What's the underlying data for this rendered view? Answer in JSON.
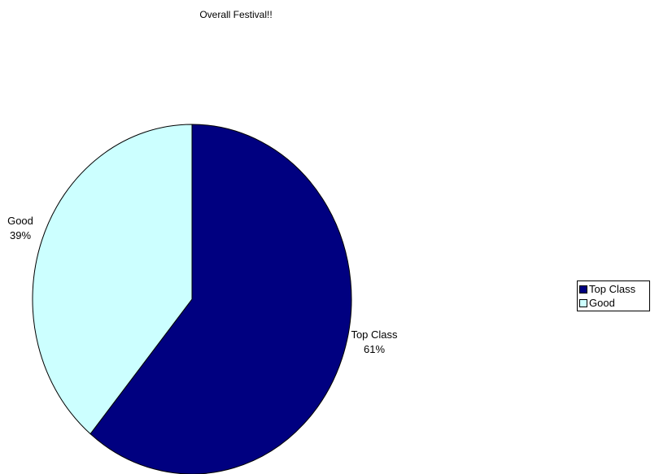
{
  "chart_data": {
    "type": "pie",
    "title": "Overall Festival!!",
    "categories": [
      "Top Class",
      "Good"
    ],
    "values": [
      61,
      39
    ],
    "units": "%",
    "colors": [
      "#000080",
      "#CCFFFF"
    ],
    "legend_position": "right",
    "data_labels": [
      {
        "name": "Top Class",
        "value": "61%"
      },
      {
        "name": "Good",
        "value": "39%"
      }
    ],
    "legend": [
      {
        "label": "Top Class",
        "color": "#000080"
      },
      {
        "label": "Good",
        "color": "#CCFFFF"
      }
    ]
  }
}
